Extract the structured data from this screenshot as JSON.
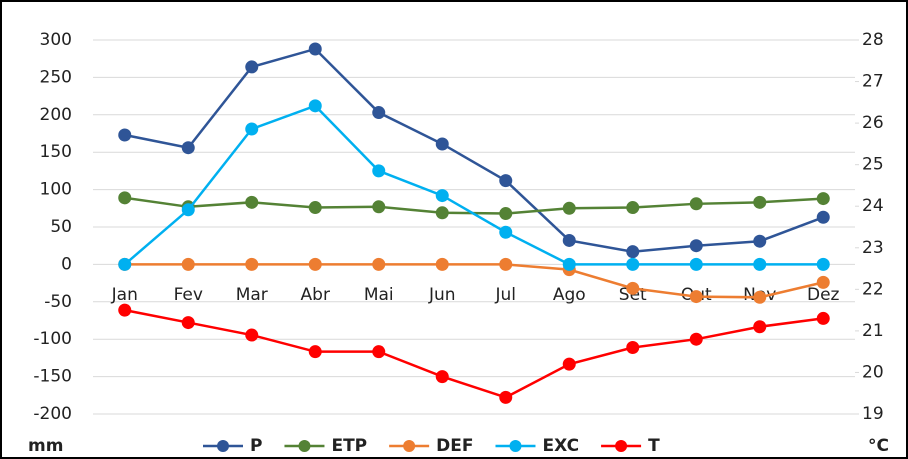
{
  "chart_data": {
    "type": "line",
    "y_label": "mm",
    "y2_label": "°C",
    "categories": [
      "Jan",
      "Fev",
      "Mar",
      "Abr",
      "Mai",
      "Jun",
      "Jul",
      "Ago",
      "Set",
      "Out",
      "Nov",
      "Dez"
    ],
    "series": [
      {
        "name": "P",
        "color": "#2f5597",
        "values": [
          173,
          156,
          264,
          288,
          203,
          161,
          112,
          32,
          17,
          25,
          31,
          63
        ]
      },
      {
        "name": "ETP",
        "color": "#548235",
        "values": [
          89,
          77,
          83,
          76,
          77,
          69,
          68,
          75,
          76,
          81,
          83,
          88
        ]
      },
      {
        "name": "DEF",
        "color": "#ed7d31",
        "values": [
          0,
          0,
          0,
          0,
          0,
          0,
          0,
          -7,
          -32,
          -43,
          -44,
          -24
        ]
      },
      {
        "name": "EXC",
        "color": "#00b0f0",
        "values": [
          0,
          73,
          181,
          212,
          125,
          92,
          43,
          0,
          0,
          0,
          0,
          0
        ]
      },
      {
        "name": "T",
        "color": "#ff0000",
        "axis": "y2",
        "values": [
          21.5,
          21.2,
          20.9,
          20.5,
          20.5,
          19.9,
          19.4,
          20.2,
          20.6,
          20.8,
          21.1,
          21.3
        ]
      }
    ],
    "ylim": [
      -200,
      300
    ],
    "yticks": [
      -200,
      -150,
      -100,
      -50,
      0,
      50,
      100,
      150,
      200,
      250,
      300
    ],
    "y2lim": [
      19,
      28
    ],
    "y2ticks": [
      19,
      20,
      21,
      22,
      23,
      24,
      25,
      26,
      27,
      28
    ],
    "grid": true,
    "legend": "bottom"
  }
}
